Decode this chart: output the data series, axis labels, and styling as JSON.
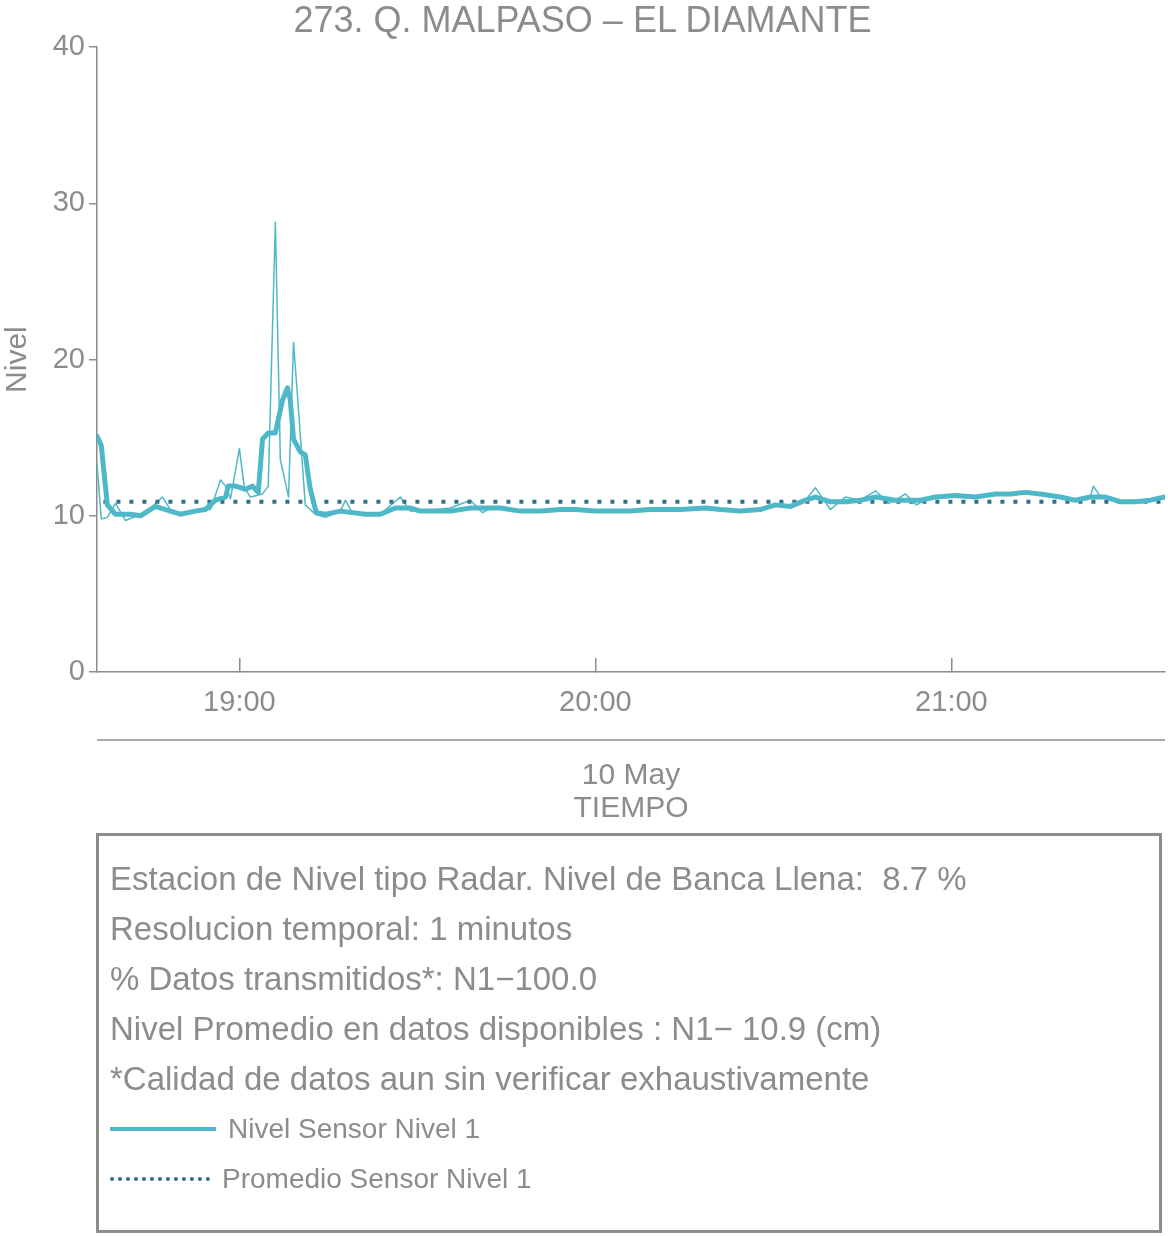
{
  "chart_data": {
    "type": "line",
    "title": "273. Q. MALPASO – EL DIAMANTE",
    "xlabel": "10 May\nTIEMPO",
    "ylabel": "Nivel",
    "xlim": [
      18.6,
      21.6
    ],
    "xticks": [
      {
        "value": 19,
        "label": "19:00"
      },
      {
        "value": 20,
        "label": "20:00"
      },
      {
        "value": 21,
        "label": "21:00"
      }
    ],
    "ylim": [
      0,
      40
    ],
    "yticks": [
      0,
      10,
      20,
      30,
      40
    ],
    "legend": "bottom",
    "marker": "none",
    "annotations": [
      "Estacion de Nivel tipo Radar. Nivel de Banca Llena:  8.7 %",
      "Resolucion temporal: 1 minutos",
      "% Datos transmitidos*: N1−100.0",
      "Nivel Promedio en datos disponibles : N1− 10.9 (cm)",
      "*Calidad de datos aun sin verificar exhaustivamente"
    ],
    "series": [
      {
        "color": "#4fb8c8",
        "x": [
          18.6,
          18.612,
          18.629,
          18.652,
          18.68,
          18.722,
          18.75,
          18.784,
          18.806,
          18.834,
          18.89,
          18.919,
          18.947,
          18.961,
          18.975,
          19.0,
          19.014,
          19.031,
          19.065,
          19.081,
          19.101,
          19.115,
          19.138,
          19.152,
          19.166,
          19.185,
          19.213,
          19.242,
          19.284,
          19.298,
          19.317,
          19.354,
          19.396,
          19.452,
          19.48,
          19.508,
          19.593,
          19.649,
          19.683,
          19.705,
          19.733,
          19.789,
          19.846,
          19.902,
          19.944,
          20.0,
          20.042,
          20.098,
          20.154,
          20.239,
          20.309,
          20.351,
          20.407,
          20.463,
          20.506,
          20.548,
          20.59,
          20.618,
          20.66,
          20.702,
          20.744,
          20.787,
          20.823,
          20.843,
          20.871,
          20.902,
          20.941,
          20.955,
          21.011,
          21.067,
          21.124,
          21.166,
          21.208,
          21.25,
          21.306,
          21.348,
          21.39,
          21.399,
          21.419,
          21.433,
          21.475,
          21.517,
          21.559,
          21.6
        ],
        "values": [
          13.3,
          9.8,
          9.9,
          10.8,
          9.7,
          10.1,
          10.5,
          11.2,
          10.4,
          10.1,
          10.4,
          10.4,
          12.3,
          11.9,
          11.1,
          14.3,
          11.8,
          11.2,
          11.4,
          11.9,
          28.8,
          13.6,
          11.2,
          21.1,
          16.8,
          10.7,
          10.1,
          9.9,
          10.3,
          11.0,
          10.2,
          10.1,
          10.1,
          11.2,
          10.3,
          10.3,
          10.5,
          11.0,
          10.2,
          10.5,
          10.5,
          10.3,
          10.3,
          10.4,
          10.4,
          10.3,
          10.3,
          10.3,
          10.4,
          10.4,
          10.5,
          10.4,
          10.3,
          10.4,
          10.7,
          10.6,
          11.0,
          11.8,
          10.4,
          11.2,
          11.0,
          11.6,
          10.8,
          11.0,
          11.4,
          10.7,
          11.2,
          11.2,
          11.3,
          11.2,
          11.4,
          11.4,
          11.5,
          11.4,
          11.2,
          11.0,
          11.2,
          11.9,
          11.2,
          11.2,
          10.9,
          10.9,
          11.0,
          11.2
        ]
      },
      {
        "name": "Nivel Sensor Nivel 1",
        "color": "#4fb8c8",
        "x": [
          18.6,
          18.612,
          18.629,
          18.652,
          18.694,
          18.722,
          18.764,
          18.806,
          18.834,
          18.876,
          18.904,
          18.933,
          18.961,
          18.969,
          18.989,
          19.017,
          19.037,
          19.053,
          19.065,
          19.081,
          19.101,
          19.121,
          19.135,
          19.143,
          19.152,
          19.171,
          19.185,
          19.199,
          19.216,
          19.242,
          19.284,
          19.354,
          19.396,
          19.438,
          19.48,
          19.508,
          19.593,
          19.649,
          19.705,
          19.733,
          19.789,
          19.846,
          19.902,
          19.944,
          20.0,
          20.042,
          20.098,
          20.154,
          20.239,
          20.309,
          20.351,
          20.407,
          20.463,
          20.506,
          20.548,
          20.59,
          20.618,
          20.66,
          20.702,
          20.744,
          20.787,
          20.843,
          20.913,
          20.955,
          21.011,
          21.067,
          21.124,
          21.166,
          21.208,
          21.25,
          21.306,
          21.348,
          21.39,
          21.433,
          21.475,
          21.517,
          21.559,
          21.6
        ],
        "values": [
          15.1,
          14.5,
          10.7,
          10.1,
          10.1,
          10.0,
          10.6,
          10.3,
          10.1,
          10.3,
          10.4,
          11.0,
          11.2,
          11.9,
          11.9,
          11.7,
          11.9,
          11.5,
          14.9,
          15.3,
          15.3,
          17.4,
          18.2,
          17.4,
          14.9,
          14.1,
          13.9,
          11.7,
          10.2,
          10.1,
          10.3,
          10.1,
          10.1,
          10.5,
          10.5,
          10.3,
          10.3,
          10.5,
          10.5,
          10.5,
          10.3,
          10.3,
          10.4,
          10.4,
          10.3,
          10.3,
          10.3,
          10.4,
          10.4,
          10.5,
          10.4,
          10.3,
          10.4,
          10.7,
          10.6,
          11.0,
          11.2,
          10.9,
          10.9,
          11.0,
          11.2,
          11.0,
          11.0,
          11.2,
          11.3,
          11.2,
          11.4,
          11.4,
          11.5,
          11.4,
          11.2,
          11.0,
          11.2,
          11.2,
          10.9,
          10.9,
          11.0,
          11.2
        ]
      },
      {
        "name": "Promedio Sensor Nivel 1",
        "color": "#2e6f8a",
        "line_style": "dotted",
        "x": [
          18.618,
          21.6
        ],
        "values": [
          10.9,
          10.9
        ]
      }
    ]
  }
}
